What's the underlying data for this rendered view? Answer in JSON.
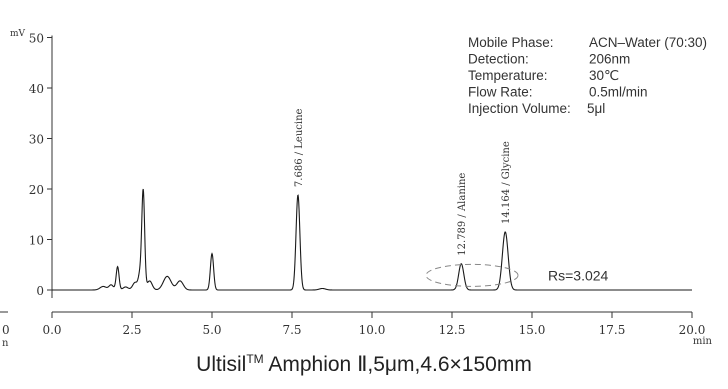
{
  "chart_data": {
    "type": "line",
    "title": "",
    "xlabel": "min",
    "ylabel": "mV",
    "xlim": [
      0.0,
      20.0
    ],
    "ylim": [
      -2,
      52
    ],
    "x_ticks": [
      "0.0",
      "2.5",
      "5.0",
      "7.5",
      "10.0",
      "12.5",
      "15.0",
      "17.5",
      "20.0"
    ],
    "y_ticks": [
      "0",
      "10",
      "20",
      "30",
      "40",
      "50"
    ],
    "partial_left_tick": {
      "value": "0",
      "unit": "n"
    },
    "series": [
      {
        "name": "",
        "peaks": [
          {
            "rt": 1.6,
            "height": 0.7,
            "width": 0.1
          },
          {
            "rt": 1.85,
            "height": 1.0,
            "width": 0.07
          },
          {
            "rt": 2.05,
            "height": 4.6,
            "width": 0.045
          },
          {
            "rt": 2.3,
            "height": 0.6,
            "width": 0.08
          },
          {
            "rt": 2.6,
            "height": 1.5,
            "width": 0.08
          },
          {
            "rt": 2.75,
            "height": 3.0,
            "width": 0.05
          },
          {
            "rt": 2.85,
            "height": 19.5,
            "width": 0.045
          },
          {
            "rt": 3.05,
            "height": 1.8,
            "width": 0.08
          },
          {
            "rt": 3.6,
            "height": 2.7,
            "width": 0.12
          },
          {
            "rt": 4.0,
            "height": 1.8,
            "width": 0.1
          },
          {
            "rt": 5.0,
            "height": 7.2,
            "width": 0.05
          },
          {
            "rt": 7.686,
            "height": 18.8,
            "width": 0.06
          },
          {
            "rt": 8.45,
            "height": 0.3,
            "width": 0.1
          },
          {
            "rt": 12.789,
            "height": 5.2,
            "width": 0.08
          },
          {
            "rt": 14.164,
            "height": 11.5,
            "width": 0.09
          }
        ],
        "baseline": 0.0,
        "x_step": 0.01
      }
    ],
    "peak_labels": [
      {
        "rt": 7.686,
        "text": "7.686 / Leucine"
      },
      {
        "rt": 12.789,
        "text": "12.789 / Alanine"
      },
      {
        "rt": 14.164,
        "text": "14.164 / Glycine"
      }
    ],
    "resolution_label": "Rs=3.024",
    "grid": false,
    "legend": "none"
  },
  "conditions": [
    {
      "label": "Mobile Phase:",
      "value": "ACN–Water (70:30)"
    },
    {
      "label": "Detection:",
      "value": "206nm"
    },
    {
      "label": "Temperature:",
      "value": "30℃"
    },
    {
      "label": "Flow Rate:",
      "value": "0.5ml/min"
    },
    {
      "label": "Injection Volume:",
      "value": "5μl"
    }
  ],
  "caption": {
    "prefix": "Ultisil",
    "superscript": "TM",
    "suffix": " Amphion Ⅱ,5μm,4.6×150mm"
  },
  "colors": {
    "trace": "#1a1a1a",
    "axis": "#333333",
    "ellipse": "#888888",
    "text": "#333333"
  }
}
